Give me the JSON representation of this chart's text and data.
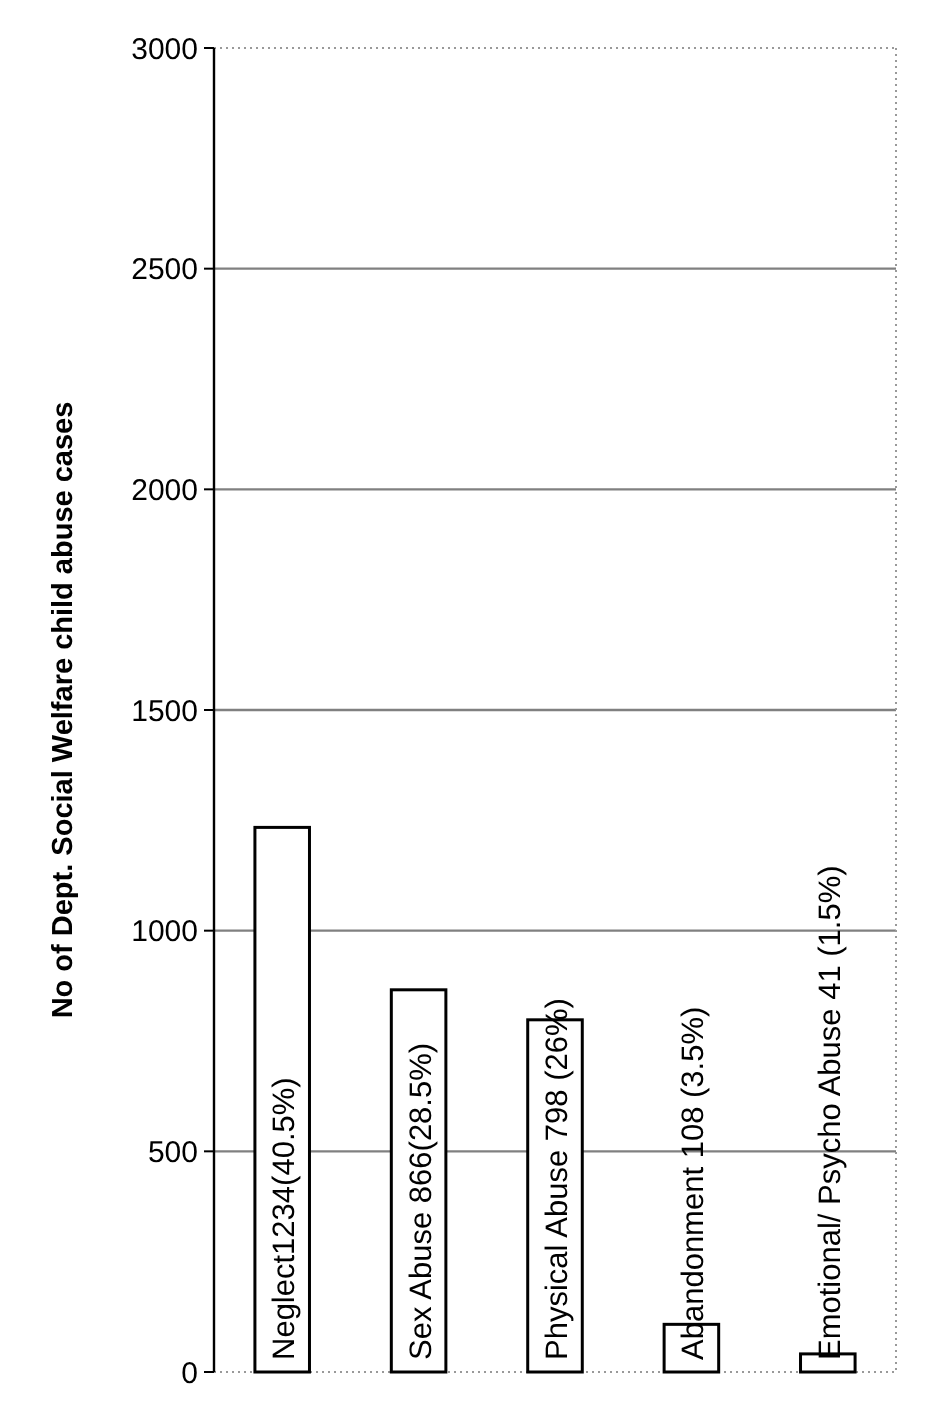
{
  "chart_data": {
    "type": "bar",
    "ylabel": "No of Dept. Social Welfare child abuse cases",
    "categories": [
      null,
      null,
      null,
      null,
      null
    ],
    "values": [
      1234,
      866,
      798,
      108,
      41
    ],
    "value_labels": [
      "Neglect1234(40.5%)",
      "Sex Abuse 866(28.5%)",
      "Physical Abuse 798 (26%)",
      "Abandonment 108 (3.5%)",
      "Emotional/ Psycho Abuse 41 (1.5%)"
    ],
    "color": "#ffffff",
    "ylim": [
      0,
      3000
    ],
    "yticks": [
      0,
      500,
      1000,
      1500,
      2000,
      2500,
      3000
    ],
    "grid": "y"
  }
}
